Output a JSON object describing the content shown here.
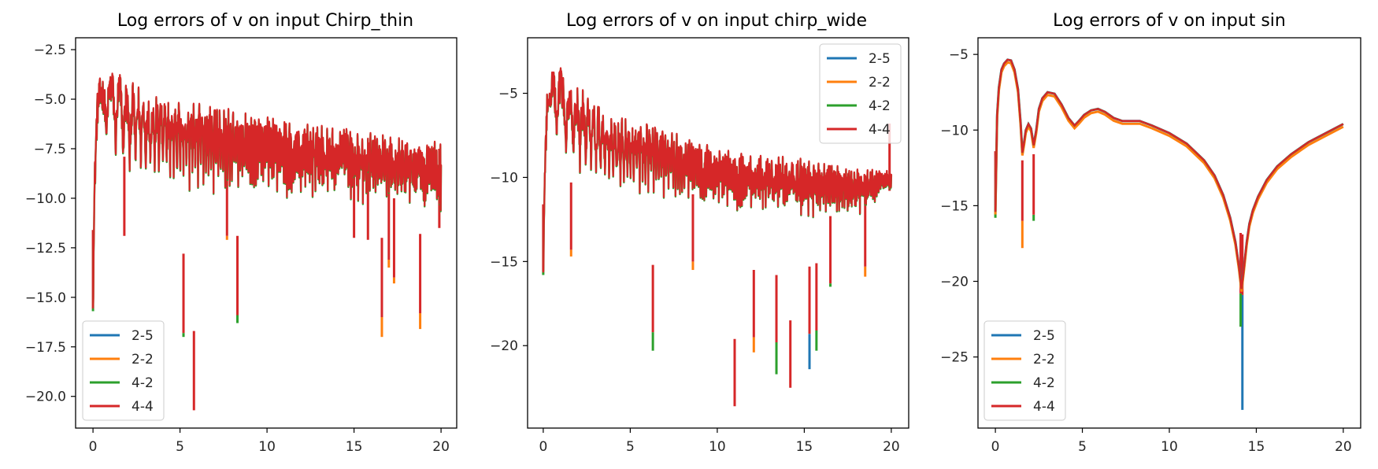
{
  "chart_data": [
    {
      "type": "line",
      "title": "Log errors of v on input Chirp_thin",
      "xlabel": "",
      "ylabel": "",
      "xlim": [
        -1,
        20.9
      ],
      "ylim": [
        -21.6,
        -1.9
      ],
      "x_ticks": [
        0,
        5,
        10,
        15,
        20
      ],
      "x_tick_labels": [
        "0",
        "5",
        "10",
        "15",
        "20"
      ],
      "y_ticks": [
        -20.0,
        -17.5,
        -15.0,
        -12.5,
        -10.0,
        -7.5,
        -5.0,
        -2.5
      ],
      "y_tick_labels": [
        "−20.0",
        "−17.5",
        "−15.0",
        "−12.5",
        "−10.0",
        "−7.5",
        "−5.0",
        "−2.5"
      ],
      "legend_location": "lower left",
      "grid": false,
      "series": [
        {
          "name": "2-5",
          "color": "#1f77b4"
        },
        {
          "name": "2-2",
          "color": "#ff7f0e"
        },
        {
          "name": "4-2",
          "color": "#2ca02c"
        },
        {
          "name": "4-4",
          "color": "#d62728"
        }
      ],
      "envelope": {
        "x": [
          0,
          0.25,
          0.5,
          0.75,
          1.0,
          1.5,
          2,
          3,
          4,
          6,
          8,
          10,
          12,
          14,
          16,
          18,
          20
        ],
        "upper": [
          -6.0,
          -4.2,
          -3.8,
          -2.9,
          -3.3,
          -3.5,
          -4.1,
          -4.4,
          -4.9,
          -5.1,
          -5.5,
          -5.9,
          -6.2,
          -6.4,
          -6.7,
          -6.9,
          -6.9
        ],
        "lower": [
          -15.6,
          -8.5,
          -8.0,
          -7.8,
          -8.2,
          -8.8,
          -9.2,
          -9.4,
          -9.6,
          -9.8,
          -10.0,
          -10.0,
          -10.2,
          -10.3,
          -10.5,
          -10.6,
          -11.3
        ]
      },
      "dips": [
        {
          "x": 0.0,
          "y": -15.6,
          "min": -15.7,
          "min_color": "#2ca02c"
        },
        {
          "x": 1.8,
          "y": -11.9
        },
        {
          "x": 5.2,
          "y": -16.8,
          "min": -17.0,
          "min_color": "#2ca02c"
        },
        {
          "x": 5.8,
          "y": -20.7
        },
        {
          "x": 7.7,
          "y": -11.9,
          "min": -12.1,
          "min_color": "#ff7f0e"
        },
        {
          "x": 8.3,
          "y": -15.9,
          "min": -16.3,
          "min_color": "#2ca02c"
        },
        {
          "x": 15.0,
          "y": -12.0
        },
        {
          "x": 15.8,
          "y": -12.1
        },
        {
          "x": 16.6,
          "y": -16.0,
          "min": -17.0,
          "min_color": "#ff7f0e"
        },
        {
          "x": 17.0,
          "y": -13.1,
          "min": -13.5,
          "min_color": "#ff7f0e"
        },
        {
          "x": 17.3,
          "y": -14.0,
          "min": -14.3,
          "min_color": "#ff7f0e"
        },
        {
          "x": 18.8,
          "y": -15.8,
          "min": -16.6,
          "min_color": "#ff7f0e"
        },
        {
          "x": 19.9,
          "y": -11.5
        }
      ]
    },
    {
      "type": "line",
      "title": "Log errors of v on input chirp_wide",
      "xlabel": "",
      "ylabel": "",
      "xlim": [
        -0.9,
        21.0
      ],
      "ylim": [
        -24.9,
        -1.7
      ],
      "x_ticks": [
        0,
        5,
        10,
        15,
        20
      ],
      "x_tick_labels": [
        "0",
        "5",
        "10",
        "15",
        "20"
      ],
      "y_ticks": [
        -20,
        -15,
        -10,
        -5
      ],
      "y_tick_labels": [
        "−20",
        "−15",
        "−10",
        "−5"
      ],
      "legend_location": "upper right",
      "grid": false,
      "series": [
        {
          "name": "2-5",
          "color": "#1f77b4"
        },
        {
          "name": "2-2",
          "color": "#ff7f0e"
        },
        {
          "name": "4-2",
          "color": "#2ca02c"
        },
        {
          "name": "4-4",
          "color": "#d62728"
        }
      ],
      "envelope": {
        "x": [
          0,
          0.25,
          0.5,
          0.75,
          1.0,
          1.5,
          2,
          3,
          4,
          6,
          8,
          10,
          12,
          14,
          16,
          18,
          20
        ],
        "upper": [
          -6.0,
          -3.8,
          -3.3,
          -2.6,
          -3.3,
          -4.4,
          -4.5,
          -5.5,
          -6.4,
          -6.8,
          -7.5,
          -8.3,
          -8.6,
          -8.8,
          -9.1,
          -9.4,
          -9.6
        ],
        "lower": [
          -15.7,
          -9.0,
          -8.5,
          -8.3,
          -8.8,
          -9.6,
          -10.2,
          -10.6,
          -11.0,
          -11.2,
          -11.6,
          -12.0,
          -12.2,
          -12.4,
          -12.6,
          -12.8,
          -10.8
        ]
      },
      "dips": [
        {
          "x": 0.0,
          "y": -15.6,
          "min": -15.8,
          "min_color": "#2ca02c"
        },
        {
          "x": 1.6,
          "y": -14.3,
          "min": -14.7,
          "min_color": "#ff7f0e"
        },
        {
          "x": 6.3,
          "y": -19.2,
          "min": -20.3,
          "min_color": "#2ca02c"
        },
        {
          "x": 8.6,
          "y": -15.0,
          "min": -15.5,
          "min_color": "#ff7f0e"
        },
        {
          "x": 11.0,
          "y": -23.6
        },
        {
          "x": 12.1,
          "y": -19.5,
          "min": -20.4,
          "min_color": "#ff7f0e"
        },
        {
          "x": 13.4,
          "y": -19.8,
          "min": -21.7,
          "min_color": "#2ca02c"
        },
        {
          "x": 14.2,
          "y": -22.5
        },
        {
          "x": 15.3,
          "y": -19.3,
          "min": -21.4,
          "min_color": "#1f77b4"
        },
        {
          "x": 15.7,
          "y": -19.1,
          "min": -20.3,
          "min_color": "#2ca02c"
        },
        {
          "x": 16.5,
          "y": -16.3,
          "min": -16.5,
          "min_color": "#2ca02c"
        },
        {
          "x": 18.5,
          "y": -15.3,
          "min": -15.9,
          "min_color": "#ff7f0e"
        },
        {
          "x": 19.9,
          "y": -10.8
        }
      ]
    },
    {
      "type": "line",
      "title": "Log errors of v on input sin",
      "xlabel": "",
      "ylabel": "",
      "xlim": [
        -1.0,
        21.0
      ],
      "ylim": [
        -29.7,
        -3.9
      ],
      "x_ticks": [
        0,
        5,
        10,
        15,
        20
      ],
      "x_tick_labels": [
        "0",
        "5",
        "10",
        "15",
        "20"
      ],
      "y_ticks": [
        -25,
        -20,
        -15,
        -10,
        -5
      ],
      "y_tick_labels": [
        "−25",
        "−20",
        "−15",
        "−10",
        "−5"
      ],
      "legend_location": "lower left",
      "grid": false,
      "series": [
        {
          "name": "2-5",
          "color": "#1f77b4"
        },
        {
          "name": "2-2",
          "color": "#ff7f0e"
        },
        {
          "name": "4-2",
          "color": "#2ca02c"
        },
        {
          "name": "4-4",
          "color": "#d62728"
        }
      ],
      "curve": {
        "x": [
          0.0,
          0.1,
          0.2,
          0.35,
          0.5,
          0.7,
          0.9,
          1.1,
          1.3,
          1.45,
          1.55,
          1.65,
          1.75,
          1.9,
          2.05,
          2.2,
          2.35,
          2.5,
          2.7,
          3.0,
          3.4,
          3.8,
          4.2,
          4.55,
          4.8,
          5.1,
          5.5,
          5.9,
          6.3,
          6.8,
          7.3,
          7.8,
          8.3,
          9.0,
          10.0,
          11.0,
          12.0,
          12.6,
          13.1,
          13.5,
          13.8,
          14.0,
          14.15,
          14.3,
          14.45,
          14.6,
          14.8,
          15.1,
          15.6,
          16.2,
          17.0,
          18.0,
          19.0,
          20.0
        ],
        "y": [
          -15.4,
          -9.0,
          -7.2,
          -6.0,
          -5.6,
          -5.35,
          -5.4,
          -6.0,
          -7.3,
          -9.5,
          -11.5,
          -10.8,
          -10.0,
          -9.6,
          -9.9,
          -11.0,
          -10.0,
          -8.6,
          -7.9,
          -7.5,
          -7.6,
          -8.3,
          -9.2,
          -9.7,
          -9.4,
          -9.0,
          -8.7,
          -8.6,
          -8.8,
          -9.2,
          -9.4,
          -9.4,
          -9.4,
          -9.7,
          -10.2,
          -10.9,
          -12.0,
          -13.0,
          -14.3,
          -15.8,
          -17.4,
          -19.0,
          -20.5,
          -19.0,
          -17.4,
          -16.2,
          -15.3,
          -14.4,
          -13.3,
          -12.4,
          -11.6,
          -10.8,
          -10.2,
          -9.6
        ]
      },
      "orange_offset": 0.18,
      "dips": [
        {
          "x": 0.0,
          "y": -15.4,
          "min": -15.8,
          "min_color": "#2ca02c"
        },
        {
          "x": 1.55,
          "y": -16.0,
          "min": -17.8,
          "min_color": "#ff7f0e"
        },
        {
          "x": 2.2,
          "y": -15.6,
          "min": -16.0,
          "min_color": "#2ca02c"
        },
        {
          "x": 14.2,
          "y": -20.9,
          "min": -28.5,
          "min_color": "#1f77b4"
        },
        {
          "x": 14.1,
          "y": -20.8,
          "min": -23.0,
          "min_color": "#2ca02c"
        }
      ]
    }
  ]
}
